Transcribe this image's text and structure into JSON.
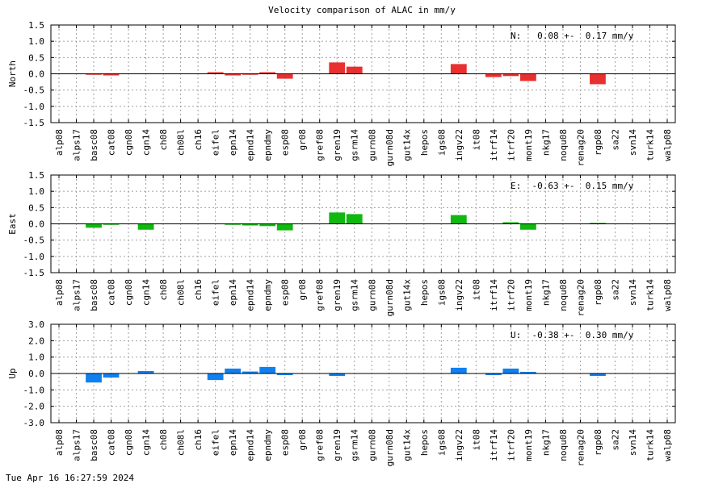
{
  "title": "Velocity comparison of ALAC in mm/y",
  "timestamp": "Tue Apr 16 16:27:59 2024",
  "chart_data": [
    {
      "type": "bar",
      "ylabel": "North",
      "ylim": [
        -1.5,
        1.5
      ],
      "yticks": [
        1.5,
        1.0,
        0.5,
        0.0,
        -0.5,
        -1.0,
        -1.5
      ],
      "ytick_labels": [
        "1.5",
        "1.0",
        "0.5",
        "0.0",
        "-0.5",
        "-1.0",
        "-1.5"
      ],
      "grid": true,
      "color": "#e83030",
      "annotation": "N:   0.08 +-  0.17 mm/y",
      "categories": [
        "alp08",
        "alps17",
        "basc08",
        "cat08",
        "cgn08",
        "cgn14",
        "ch08",
        "ch08l",
        "ch16",
        "eifel",
        "epn14",
        "epnd14",
        "epndmy",
        "esp08",
        "gr08",
        "gref08",
        "gren19",
        "gsrm14",
        "gurn08",
        "gurn08d",
        "gut14x",
        "hepos",
        "igs08",
        "ingv22",
        "it08",
        "itrf14",
        "itrf20",
        "mont19",
        "nkg17",
        "noqu08",
        "renag20",
        "rgp08",
        "sa22",
        "svn14",
        "turk14",
        "walp08"
      ],
      "values": [
        0,
        0,
        -0.03,
        -0.05,
        0,
        0,
        0,
        0,
        0,
        0.05,
        -0.05,
        -0.03,
        0.05,
        -0.15,
        0,
        0,
        0.35,
        0.22,
        0,
        0,
        0,
        0,
        0,
        0.3,
        0,
        -0.1,
        -0.07,
        -0.22,
        0,
        0,
        0,
        -0.32,
        0,
        0,
        0,
        0
      ]
    },
    {
      "type": "bar",
      "ylabel": "East",
      "ylim": [
        -1.5,
        1.5
      ],
      "yticks": [
        1.5,
        1.0,
        0.5,
        0.0,
        -0.5,
        -1.0,
        -1.5
      ],
      "ytick_labels": [
        "1.5",
        "1.0",
        "0.5",
        "0.0",
        "-0.5",
        "-1.0",
        "-1.5"
      ],
      "grid": true,
      "color": "#10b810",
      "annotation": "E:  -0.63 +-  0.15 mm/y",
      "categories": [
        "alp08",
        "alps17",
        "basc08",
        "cat08",
        "cgn08",
        "cgn14",
        "ch08",
        "ch08l",
        "ch16",
        "eifel",
        "epn14",
        "epnd14",
        "epndmy",
        "esp08",
        "gr08",
        "gref08",
        "gren19",
        "gsrm14",
        "gurn08",
        "gurn08d",
        "gut14x",
        "hepos",
        "igs08",
        "ingv22",
        "it08",
        "itrf14",
        "itrf20",
        "mont19",
        "nkg17",
        "noqu08",
        "renag20",
        "rgp08",
        "sa22",
        "svn14",
        "turk14",
        "walp08"
      ],
      "values": [
        0,
        0,
        -0.12,
        -0.03,
        0,
        -0.18,
        0,
        0,
        0,
        0,
        -0.03,
        -0.05,
        -0.07,
        -0.2,
        0,
        0,
        0.35,
        0.3,
        0,
        0,
        0,
        0,
        0,
        0.27,
        0,
        0,
        0.05,
        -0.18,
        0,
        0,
        0,
        0.03,
        0,
        0,
        0,
        0
      ]
    },
    {
      "type": "bar",
      "ylabel": "Up",
      "ylim": [
        -3.0,
        3.0
      ],
      "yticks": [
        3.0,
        2.0,
        1.0,
        0.0,
        -1.0,
        -2.0,
        -3.0
      ],
      "ytick_labels": [
        "3.0",
        "2.0",
        "1.0",
        "0.0",
        "-1.0",
        "-2.0",
        "-3.0"
      ],
      "grid": true,
      "color": "#1080f0",
      "annotation": "U:  -0.38 +-  0.30 mm/y",
      "categories": [
        "alp08",
        "alps17",
        "basc08",
        "cat08",
        "cgn08",
        "cgn14",
        "ch08",
        "ch08l",
        "ch16",
        "eifel",
        "epn14",
        "epnd14",
        "epndmy",
        "esp08",
        "gr08",
        "gref08",
        "gren19",
        "gsrm14",
        "gurn08",
        "gurn08d",
        "gut14x",
        "hepos",
        "igs08",
        "ingv22",
        "it08",
        "itrf14",
        "itrf20",
        "mont19",
        "nkg17",
        "noqu08",
        "renag20",
        "rgp08",
        "sa22",
        "svn14",
        "turk14",
        "walp08"
      ],
      "values": [
        0,
        0,
        -0.55,
        -0.25,
        0,
        0.15,
        0,
        0,
        0,
        -0.4,
        0.3,
        0.12,
        0.4,
        -0.1,
        0,
        0,
        -0.15,
        0,
        0,
        0,
        0,
        0,
        0,
        0.35,
        0,
        -0.1,
        0.3,
        0.1,
        0,
        0,
        0,
        -0.15,
        0,
        0,
        0,
        0
      ]
    }
  ]
}
